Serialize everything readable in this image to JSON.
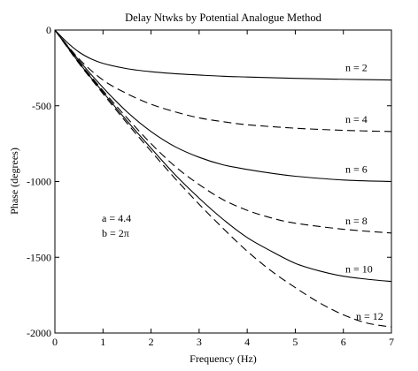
{
  "chart_data": {
    "type": "line",
    "title": "Delay Ntwks by Potential Analogue Method",
    "xlabel": "Frequency (Hz)",
    "ylabel": "Phase (degrees)",
    "xlim": [
      0,
      7
    ],
    "ylim": [
      -2000,
      0
    ],
    "xticks": [
      0,
      1,
      2,
      3,
      4,
      5,
      6,
      7
    ],
    "xtick_labels": [
      "0",
      "1",
      "2",
      "3",
      "4",
      "5",
      "6",
      "7"
    ],
    "yticks": [
      0,
      -500,
      -1000,
      -1500,
      -2000
    ],
    "ytick_labels": [
      "0",
      "-500",
      "-1000",
      "-1500",
      "-2000"
    ],
    "grid": false,
    "annotations": [
      "a = 4.4",
      "b = 2π"
    ],
    "series": [
      {
        "name": "n = 2",
        "style": "solid",
        "x": [
          0,
          0.25,
          0.5,
          0.75,
          1,
          1.5,
          2,
          2.5,
          3,
          3.5,
          4,
          5,
          6,
          7
        ],
        "values": [
          0,
          -80,
          -145,
          -190,
          -220,
          -255,
          -275,
          -288,
          -297,
          -305,
          -310,
          -319,
          -325,
          -330
        ]
      },
      {
        "name": "n = 4",
        "style": "dashed",
        "x": [
          0,
          0.5,
          1,
          1.5,
          2,
          2.5,
          3,
          3.5,
          4,
          5,
          6,
          7
        ],
        "values": [
          0,
          -190,
          -330,
          -420,
          -490,
          -540,
          -580,
          -605,
          -625,
          -648,
          -662,
          -670
        ]
      },
      {
        "name": "n = 6",
        "style": "solid",
        "x": [
          0,
          0.5,
          1,
          1.5,
          2,
          2.5,
          3,
          3.5,
          4,
          4.5,
          5,
          6,
          7
        ],
        "values": [
          0,
          -200,
          -380,
          -540,
          -670,
          -770,
          -840,
          -890,
          -920,
          -945,
          -965,
          -990,
          -1000
        ]
      },
      {
        "name": "n = 8",
        "style": "dashed",
        "x": [
          0,
          0.5,
          1,
          1.5,
          2,
          2.5,
          3,
          3.5,
          4,
          4.5,
          5,
          6,
          7
        ],
        "values": [
          0,
          -210,
          -400,
          -580,
          -750,
          -900,
          -1020,
          -1120,
          -1190,
          -1240,
          -1275,
          -1315,
          -1340
        ]
      },
      {
        "name": "n = 10",
        "style": "solid",
        "x": [
          0,
          0.5,
          1,
          1.5,
          2,
          2.5,
          3,
          3.5,
          4,
          4.5,
          5,
          5.5,
          6,
          6.5,
          7
        ],
        "values": [
          0,
          -215,
          -410,
          -600,
          -780,
          -955,
          -1110,
          -1250,
          -1370,
          -1460,
          -1540,
          -1590,
          -1625,
          -1645,
          -1660
        ]
      },
      {
        "name": "n = 12",
        "style": "dashed",
        "x": [
          0,
          0.5,
          1,
          1.5,
          2,
          2.5,
          3,
          3.5,
          4,
          4.5,
          5,
          5.5,
          6,
          6.5,
          7
        ],
        "values": [
          0,
          -220,
          -420,
          -615,
          -800,
          -980,
          -1150,
          -1310,
          -1460,
          -1590,
          -1700,
          -1800,
          -1880,
          -1935,
          -1960
        ]
      }
    ]
  }
}
